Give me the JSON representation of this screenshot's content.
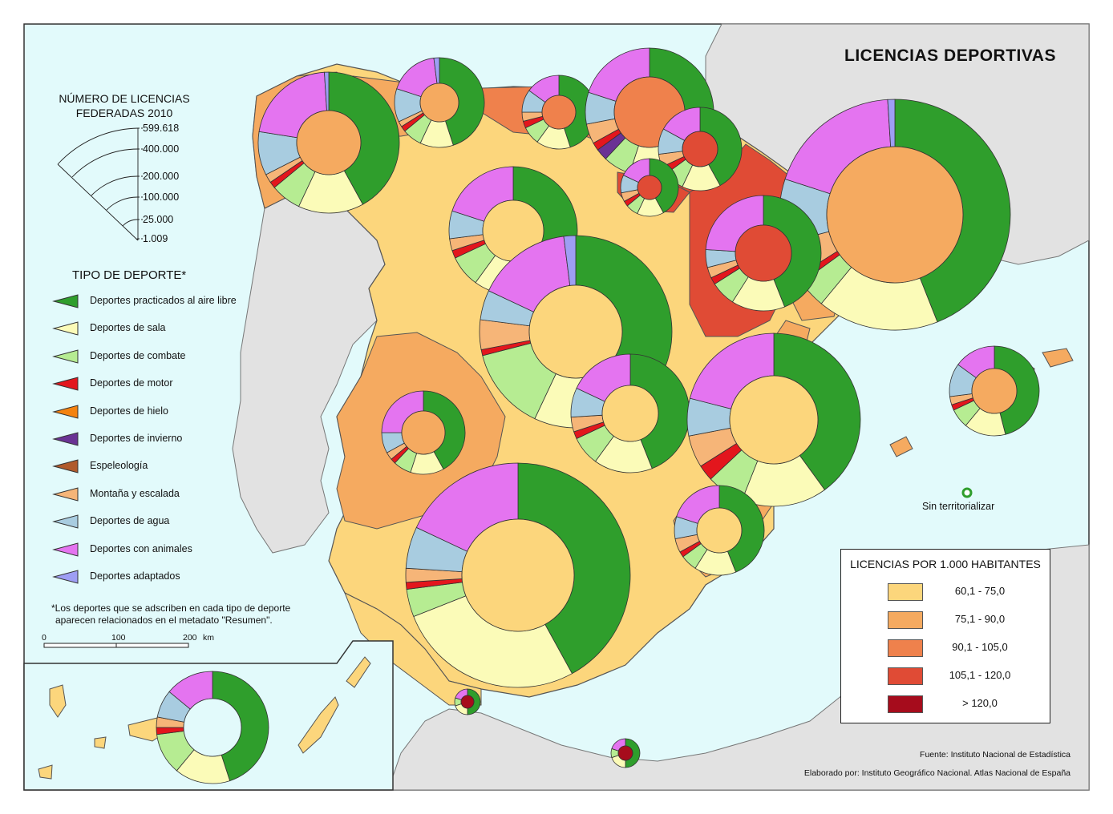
{
  "title": "LICENCIAS DEPORTIVAS",
  "size_legend": {
    "title_line1": "NÚMERO DE LICENCIAS",
    "title_line2": "FEDERADAS 2010",
    "ticks": [
      "599.618",
      "400.000",
      "200.000",
      "100.000",
      "25.000",
      "1.009"
    ]
  },
  "sports_legend": {
    "title": "TIPO DE DEPORTE*",
    "items": [
      {
        "label": "Deportes practicados al aire libre",
        "color": "#2f9e2c"
      },
      {
        "label": "Deportes de sala",
        "color": "#fbfbb8"
      },
      {
        "label": "Deportes de combate",
        "color": "#b6ec92"
      },
      {
        "label": "Deportes de motor",
        "color": "#e3161d"
      },
      {
        "label": "Deportes de hielo",
        "color": "#f4820f"
      },
      {
        "label": "Deportes de invierno",
        "color": "#6a3294"
      },
      {
        "label": "Espeleología",
        "color": "#b05a2c"
      },
      {
        "label": "Montaña y escalada",
        "color": "#f6b578"
      },
      {
        "label": "Deportes de agua",
        "color": "#a8cce0"
      },
      {
        "label": "Deportes con animales",
        "color": "#e474f0"
      },
      {
        "label": "Deportes adaptados",
        "color": "#9e9ef4"
      }
    ],
    "note_line1": "*Los deportes que se adscriben en cada tipo de deporte",
    "note_line2": "aparecen relacionados en el metadato \"Resumen\"."
  },
  "scale_bar": {
    "labels": [
      "0",
      "100",
      "200"
    ],
    "unit": "km"
  },
  "rate_legend": {
    "title": "LICENCIAS POR 1.000 HABITANTES",
    "classes": [
      {
        "label": "60,1 - 75,0",
        "color": "#fcd67c"
      },
      {
        "label": "75,1 - 90,0",
        "color": "#f5aa60"
      },
      {
        "label": "90,1 - 105,0",
        "color": "#ef814c"
      },
      {
        "label": "105,1 - 120,0",
        "color": "#e04b35"
      },
      {
        "label": "> 120,0",
        "color": "#a60c1c"
      }
    ]
  },
  "sin_territorializar": "Sin territorializar",
  "source": "Fuente: Instituto Nacional de Estadística",
  "credit": "Elaborado por: Instituto Geográfico Nacional. Atlas Nacional de España",
  "colors": {
    "sea": "#e2fafb",
    "foreign_land": "#e2e2e2",
    "border": "#444444"
  }
}
